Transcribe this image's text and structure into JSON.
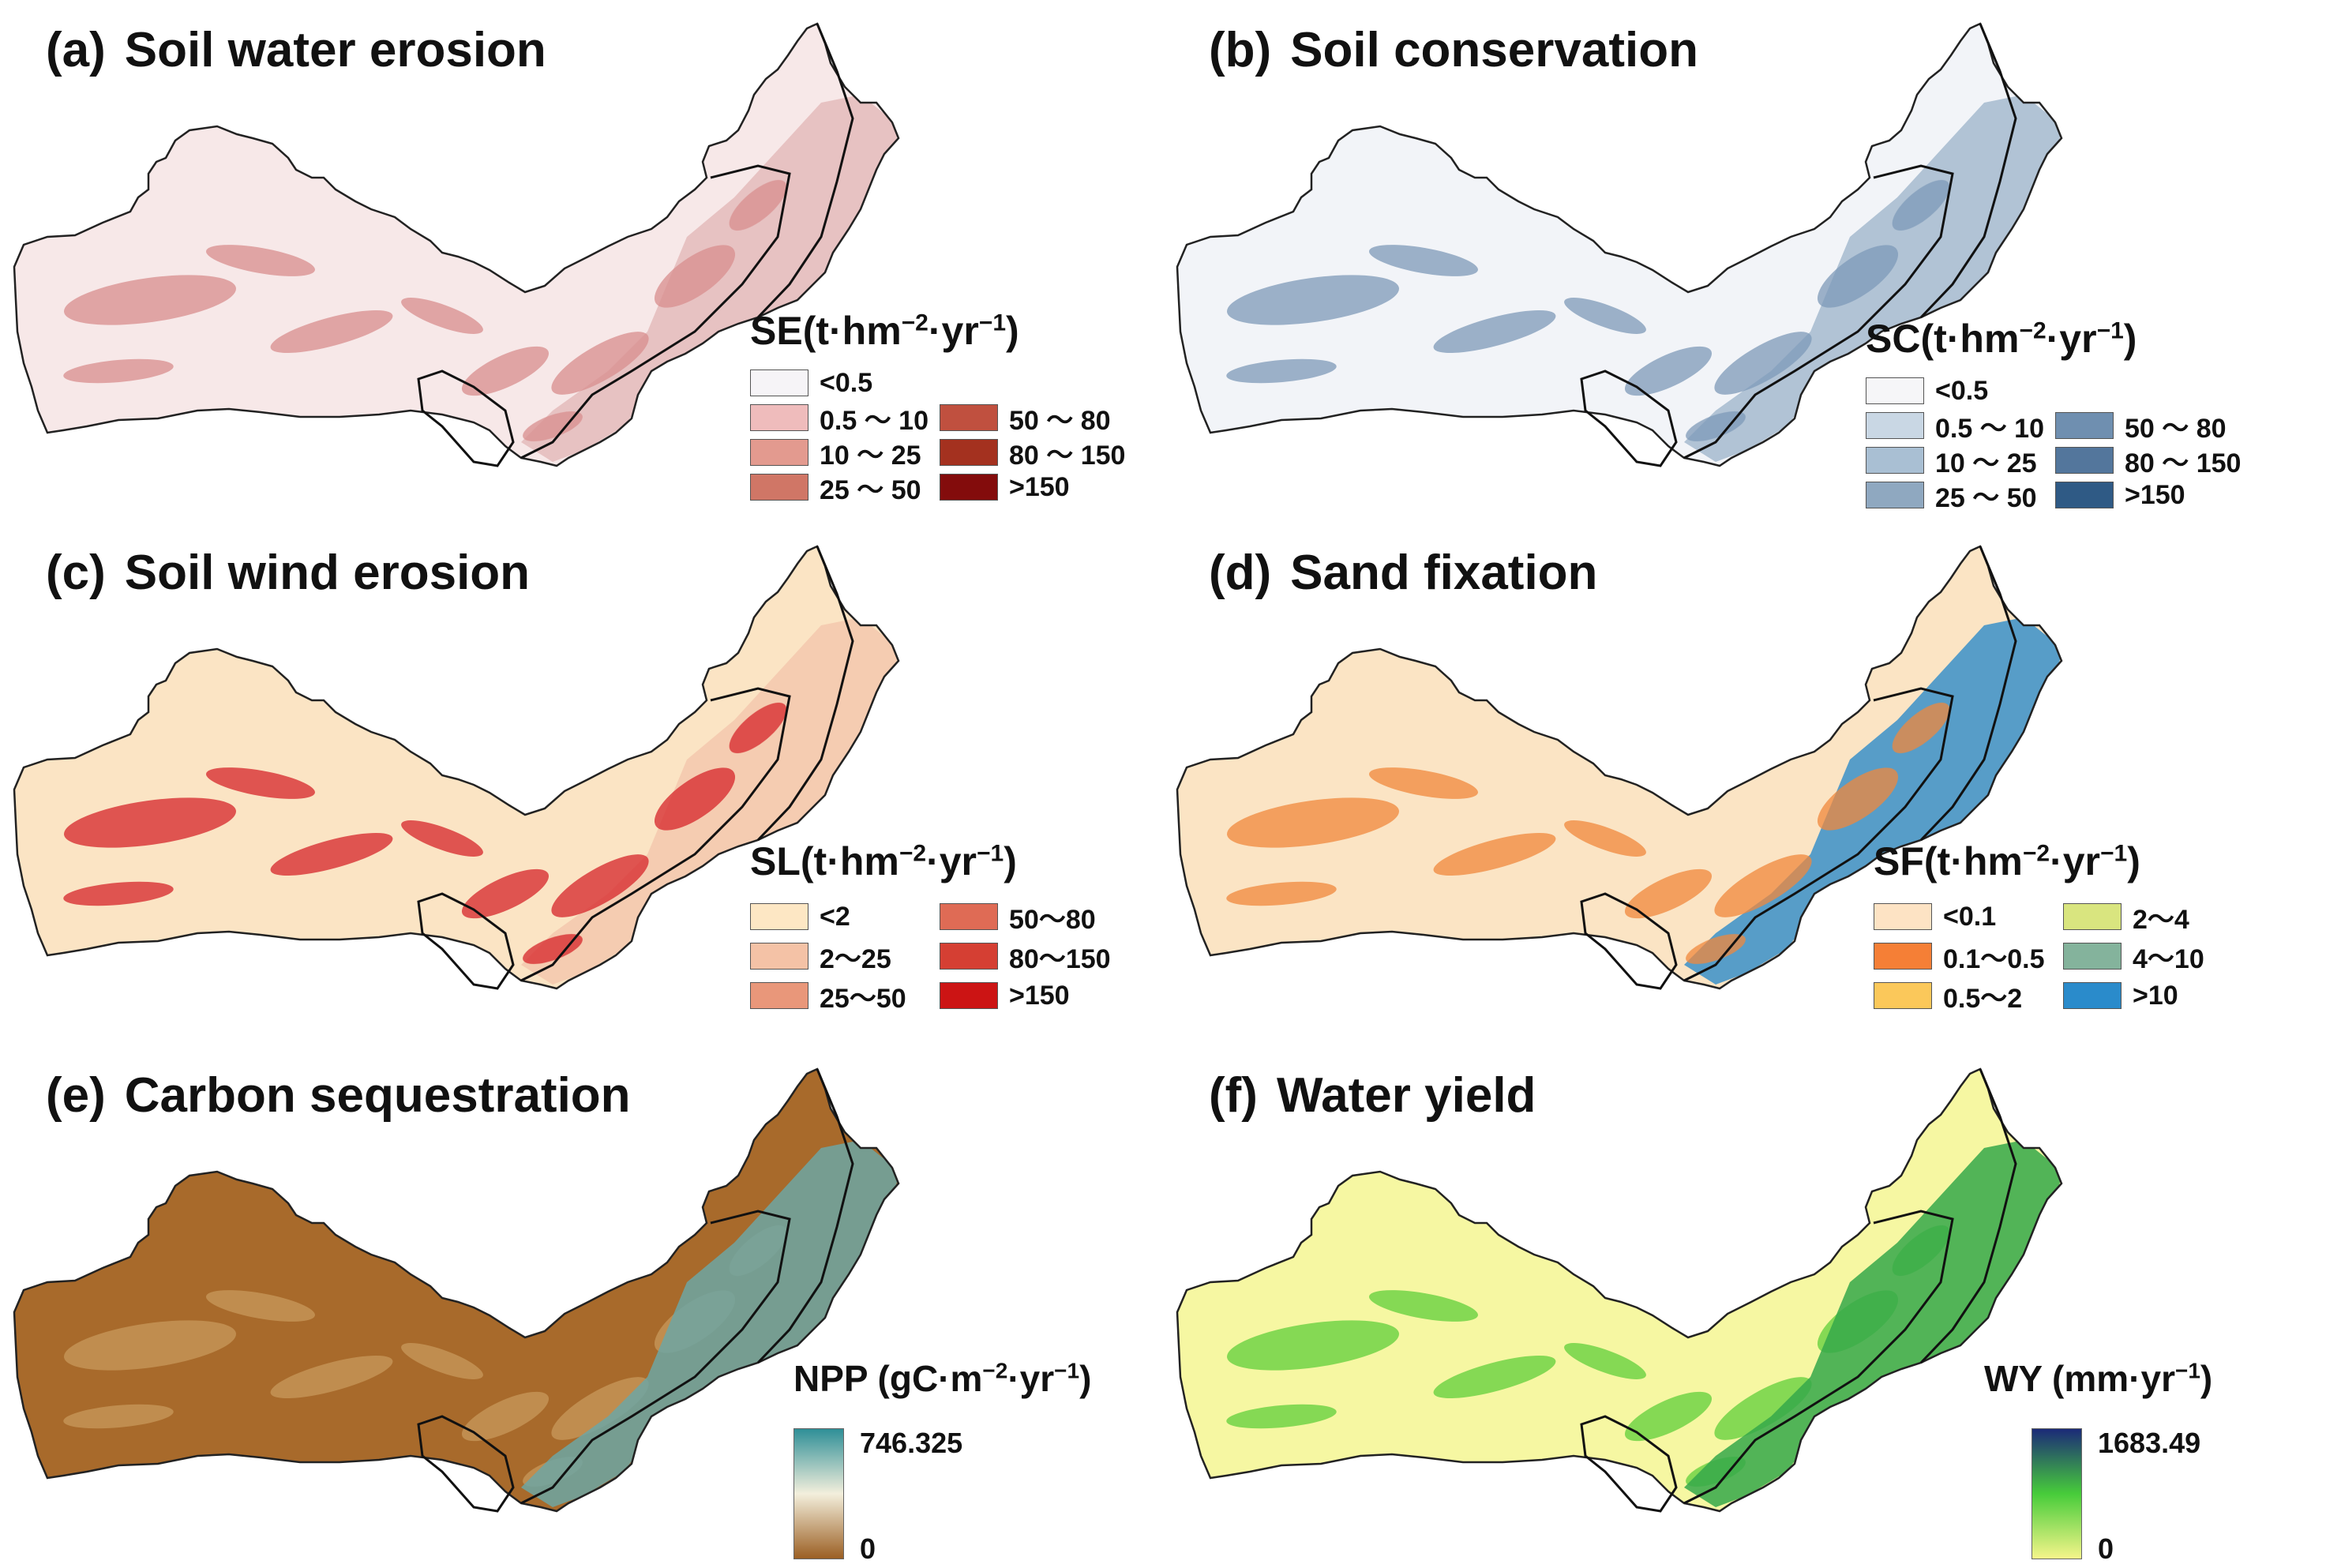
{
  "panels": [
    {
      "id": "a",
      "letter": "(a)",
      "title": "Soil water erosion",
      "legend_type": "classes",
      "legend_title": {
        "abbr": "SE",
        "unit_prefix": "(t·hm",
        "exp1": "−2",
        "unit_mid": "·yr",
        "exp2": "−1",
        "unit_suffix": ")"
      },
      "colors": {
        "fill": "#f7e8e8",
        "texture": "#d98e8e",
        "band": "#e5bcbc"
      },
      "classes": [
        {
          "label": "<0.5",
          "color": "#f6f4f7"
        },
        {
          "label": "0.5 ～ 10",
          "color": "#efbcbc"
        },
        {
          "label": "10 ～ 25",
          "color": "#e39a8f"
        },
        {
          "label": "25 ～ 50",
          "color": "#d07666"
        },
        {
          "label": "50 ～ 80",
          "color": "#c0503f"
        },
        {
          "label": "80 ～ 150",
          "color": "#a4311f"
        },
        {
          "label": ">150",
          "color": "#830c0c"
        }
      ]
    },
    {
      "id": "b",
      "letter": "(b)",
      "title": "Soil conservation",
      "legend_type": "classes",
      "legend_title": {
        "abbr": "SC",
        "unit_prefix": "(t·hm",
        "exp1": "−2",
        "unit_mid": "·yr",
        "exp2": "−1",
        "unit_suffix": ")"
      },
      "colors": {
        "fill": "#f2f4f8",
        "texture": "#7e9ab8",
        "band": "#a6bbd0"
      },
      "classes": [
        {
          "label": "<0.5",
          "color": "#f6f6f8"
        },
        {
          "label": "0.5 ～ 10",
          "color": "#c9d7e4"
        },
        {
          "label": "10 ～ 25",
          "color": "#a9bfd3"
        },
        {
          "label": "25 ～ 50",
          "color": "#8fa8c0"
        },
        {
          "label": "50 ～ 80",
          "color": "#6f8fb0"
        },
        {
          "label": "80 ～ 150",
          "color": "#53769c"
        },
        {
          "label": ">150",
          "color": "#2f5a85"
        }
      ]
    },
    {
      "id": "c",
      "letter": "(c)",
      "title": "Soil wind erosion",
      "legend_type": "classes",
      "legend_title": {
        "abbr": "SL",
        "unit_prefix": "(t·hm",
        "exp1": "−2",
        "unit_mid": "·yr",
        "exp2": "−1",
        "unit_suffix": ")"
      },
      "colors": {
        "fill": "#fbe4c4",
        "texture": "#d6252a",
        "band": "#f4c8ae"
      },
      "classes": [
        {
          "label": "<2",
          "color": "#fde7c4"
        },
        {
          "label": "2～25",
          "color": "#f4c2a6"
        },
        {
          "label": "25～50",
          "color": "#e9977a"
        },
        {
          "label": "50～80",
          "color": "#df6b55"
        },
        {
          "label": "80～150",
          "color": "#d53f33"
        },
        {
          "label": ">150",
          "color": "#cc1414"
        }
      ]
    },
    {
      "id": "d",
      "letter": "(d)",
      "title": "Sand fixation",
      "legend_type": "classes",
      "legend_title": {
        "abbr": "SF",
        "unit_prefix": "(t·hm",
        "exp1": "−2",
        "unit_mid": "·yr",
        "exp2": "−1",
        "unit_suffix": ")"
      },
      "colors": {
        "fill": "#fbe4c4",
        "texture": "#f0883c",
        "band": "#3b91c9"
      },
      "classes": [
        {
          "label": "<0.1",
          "color": "#fde3c4"
        },
        {
          "label": "0.1～0.5",
          "color": "#f57f36"
        },
        {
          "label": "0.5～2",
          "color": "#fbc85a"
        },
        {
          "label": "2～4",
          "color": "#d9e57f"
        },
        {
          "label": "4～10",
          "color": "#84b39c"
        },
        {
          "label": ">10",
          "color": "#2a8bcb"
        }
      ]
    },
    {
      "id": "e",
      "letter": "(e)",
      "title": "Carbon sequestration",
      "legend_type": "continuous",
      "legend_title": {
        "abbr": "NPP (gC·m",
        "exp1": "−2",
        "unit_mid": "·yr",
        "exp2": "−1",
        "unit_suffix": ")"
      },
      "colors": {
        "fill": "#a86a2b",
        "texture": "#c99a5c",
        "band": "#6ea6a4",
        "ramp_top": "#2f8f97",
        "ramp_mid": "#f3efdc",
        "ramp_bottom": "#9b5f23"
      },
      "range": {
        "max": "746.325",
        "min": "0"
      }
    },
    {
      "id": "f",
      "letter": "(f)",
      "title": "Water yield",
      "legend_type": "continuous",
      "legend_title": {
        "abbr": "WY (mm·yr",
        "exp1": "−1",
        "unit_suffix": ")"
      },
      "colors": {
        "fill": "#f6f7a2",
        "texture": "#5fcf3a",
        "band": "#36a84a",
        "ramp_top": "#1b2a78",
        "ramp_mid": "#47cc3a",
        "ramp_bottom": "#f5f58a"
      },
      "range": {
        "max": "1683.49",
        "min": "0"
      }
    }
  ]
}
